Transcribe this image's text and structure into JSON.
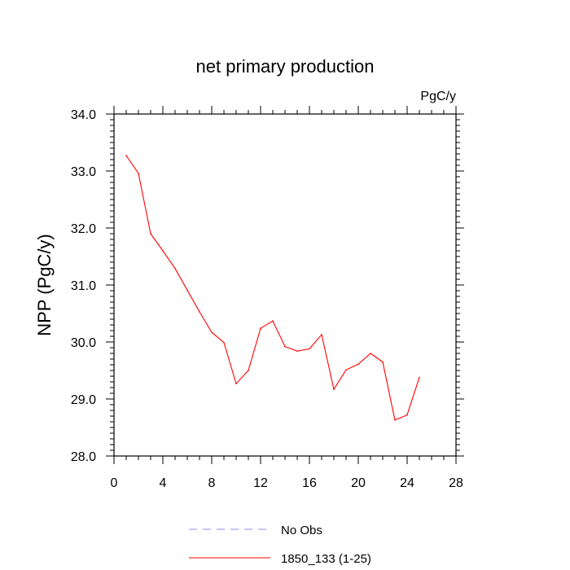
{
  "chart_data": {
    "type": "line",
    "title": "net primary production",
    "units": "PgC/y",
    "xlabel": "",
    "ylabel": "NPP  (PgC/y)",
    "xlim": [
      0,
      28
    ],
    "ylim": [
      28.0,
      34.0
    ],
    "xticks": [
      "0",
      "4",
      "8",
      "12",
      "16",
      "20",
      "24",
      "28"
    ],
    "yticks": [
      "28.0",
      "29.0",
      "30.0",
      "31.0",
      "32.0",
      "33.0",
      "34.0"
    ],
    "grid": false,
    "legend_position": "bottom",
    "series": [
      {
        "name": "No Obs",
        "color": "#8f8ff0",
        "dashed": true,
        "x": [],
        "y": []
      },
      {
        "name": "1850_133 (1-25)",
        "color": "#ff0000",
        "dashed": false,
        "x": [
          1,
          2,
          3,
          4,
          5,
          6,
          7,
          8,
          9,
          10,
          11,
          12,
          13,
          14,
          15,
          16,
          17,
          18,
          19,
          20,
          21,
          22,
          23,
          24,
          25
        ],
        "y": [
          33.27,
          32.96,
          31.9,
          31.6,
          31.29,
          30.91,
          30.53,
          30.17,
          29.99,
          29.27,
          29.5,
          30.24,
          30.37,
          29.92,
          29.84,
          29.88,
          30.13,
          29.17,
          29.51,
          29.61,
          29.8,
          29.65,
          28.63,
          28.72,
          29.38
        ]
      }
    ]
  }
}
